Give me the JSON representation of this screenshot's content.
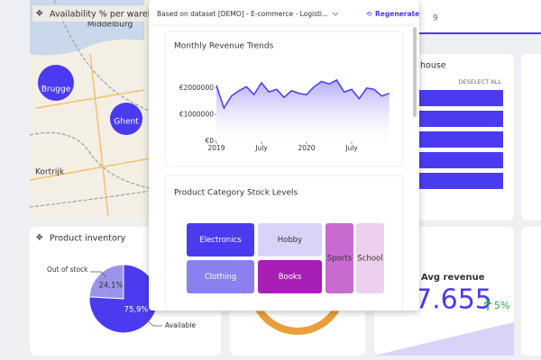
{
  "map_card": {
    "title": "Availability % per warehouse",
    "places": [
      "Middelburg",
      "Kortrijk"
    ],
    "bubbles": [
      "Brugge",
      "Ghent"
    ]
  },
  "tab": {
    "label": "9"
  },
  "warehouse_card": {
    "title": "house",
    "action": "DESELECT ALL"
  },
  "inventory_card": {
    "title": "Product inventory",
    "chart_data": {
      "type": "pie",
      "categories": [
        "Out of stock",
        "Available"
      ],
      "values": [
        24.1,
        75.9
      ],
      "value_labels": [
        "24,1%",
        "75,9%"
      ],
      "colors": [
        "#9c94ea",
        "#4a3bf0"
      ]
    }
  },
  "revenue_card": {
    "title": "Avg revenue",
    "value": "7.655",
    "change": "5%"
  },
  "popup": {
    "dataset": "Based on dataset [DEMO] - E-commerce - Logisti...",
    "action": "Regenerate",
    "revenue_chart": {
      "chart_data": {
        "type": "line",
        "title": "Monthly Revenue Trends",
        "x": [
          0,
          1,
          2,
          3,
          4,
          5,
          6,
          7,
          8,
          9,
          10,
          11,
          12,
          13,
          14,
          15,
          16,
          17,
          18,
          19,
          20,
          21,
          22,
          23
        ],
        "series": [
          {
            "name": "Revenue",
            "color": "#4a3bf0",
            "values": [
              2100000,
              1250000,
              1700000,
              1900000,
              2050000,
              1750000,
              2200000,
              1850000,
              1950000,
              1650000,
              1900000,
              1800000,
              1750000,
              2050000,
              2250000,
              2150000,
              2300000,
              1850000,
              1950000,
              1600000,
              2000000,
              1950000,
              1700000,
              1800000
            ]
          }
        ],
        "xlim": [
          0,
          24
        ],
        "xticks": [
          {
            "value": 0,
            "label": "2019"
          },
          {
            "value": 6,
            "label": "July"
          },
          {
            "value": 12,
            "label": "2020"
          },
          {
            "value": 18,
            "label": "July"
          }
        ],
        "ylim": [
          0,
          2500000
        ],
        "yticks": [
          {
            "value": 0,
            "label": "€0"
          },
          {
            "value": 1000000,
            "label": "€1000000"
          },
          {
            "value": 2000000,
            "label": "€2000000"
          }
        ]
      }
    },
    "stock_chart": {
      "title": "Product Category Stock Levels",
      "categories": [
        "Electronics",
        "Hobby",
        "Clothing",
        "Books",
        "Sports",
        "School"
      ]
    }
  }
}
